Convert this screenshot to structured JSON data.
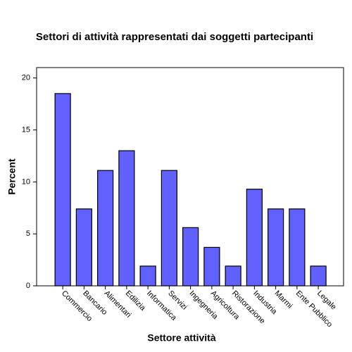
{
  "chart_data": {
    "type": "bar",
    "title": "Settori di attività rappresentati dai soggetti partecipanti",
    "x_label": "Settore attività",
    "y_label": "Percent",
    "categories": [
      "Commercio",
      "Bancario",
      "Alimentari",
      "Edilizia",
      "Informatica",
      "Servizi",
      "Ingegneria",
      "Agricoltura",
      "Ristorazione",
      "Industria",
      "Marmi",
      "Ente Pubblico",
      "Legale"
    ],
    "values": [
      18.5,
      7.4,
      11.1,
      13.0,
      1.9,
      11.1,
      5.6,
      3.7,
      1.9,
      9.3,
      7.4,
      7.4,
      1.9
    ],
    "color": "#6161ff",
    "ylim": [
      0,
      21
    ],
    "yticks": [
      0,
      5,
      10,
      15,
      20
    ],
    "grid": false
  }
}
